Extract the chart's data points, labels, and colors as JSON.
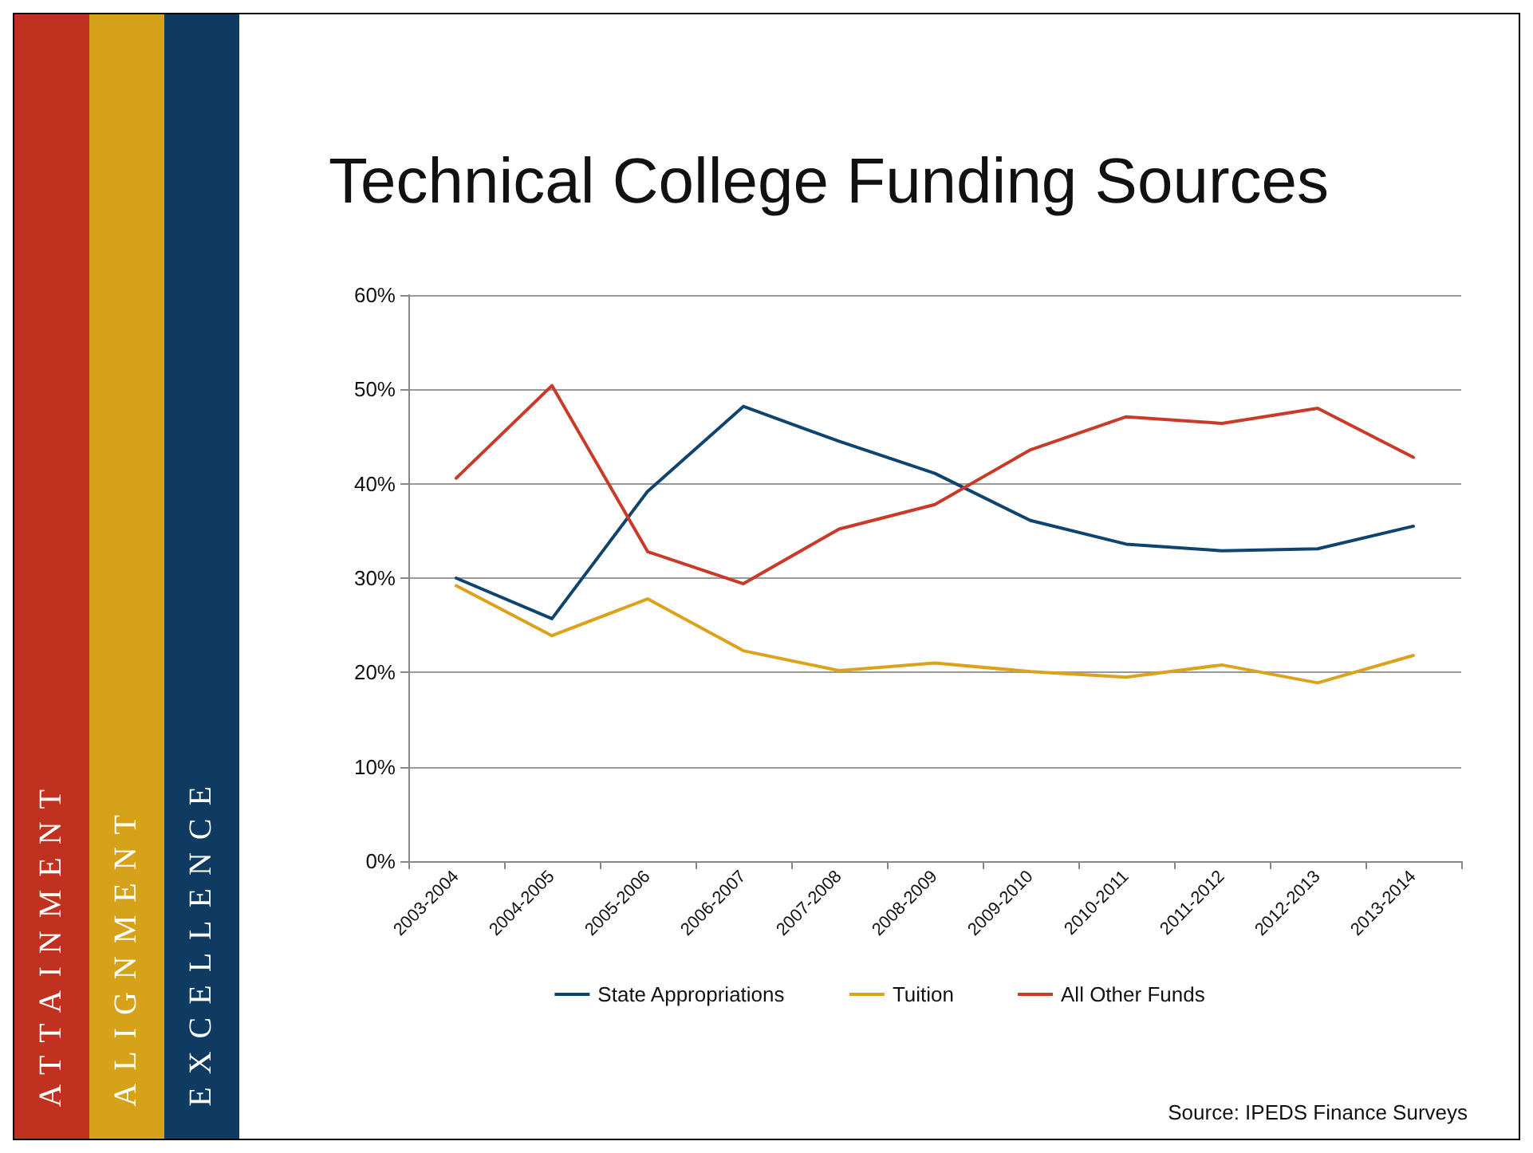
{
  "chart_data": {
    "type": "line",
    "title": "Technical College Funding Sources",
    "categories": [
      "2003-2004",
      "2004-2005",
      "2005-2006",
      "2006-2007",
      "2007-2008",
      "2008-2009",
      "2009-2010",
      "2010-2011",
      "2011-2012",
      "2012-2013",
      "2013-2014"
    ],
    "series": [
      {
        "name": "State Appropriations",
        "color": "#0f4470",
        "values": [
          30.0,
          25.7,
          39.2,
          48.2,
          44.5,
          41.1,
          36.1,
          33.6,
          32.9,
          33.1,
          35.5
        ]
      },
      {
        "name": "Tuition",
        "color": "#dca21c",
        "values": [
          29.2,
          23.9,
          27.8,
          22.3,
          20.2,
          21.0,
          20.1,
          19.5,
          20.8,
          18.9,
          21.8
        ]
      },
      {
        "name": "All Other Funds",
        "color": "#c93a28",
        "values": [
          40.6,
          50.4,
          32.8,
          29.4,
          35.2,
          37.8,
          43.6,
          47.1,
          46.4,
          48.0,
          42.8
        ]
      }
    ],
    "ylim": [
      0,
      60
    ],
    "yticks": [
      {
        "value": 0,
        "label": "0%"
      },
      {
        "value": 10,
        "label": "10%"
      },
      {
        "value": 20,
        "label": "20%"
      },
      {
        "value": 30,
        "label": "30%"
      },
      {
        "value": 40,
        "label": "40%"
      },
      {
        "value": 50,
        "label": "50%"
      },
      {
        "value": 60,
        "label": "60%"
      }
    ],
    "grid": "y",
    "legend": "bottom",
    "marker": "none",
    "line_style": "solid",
    "annotations": [
      "Source: IPEDS Finance Surveys",
      "ATTAINMENT",
      "ALIGNMENT",
      "EXCELLENCE"
    ]
  }
}
